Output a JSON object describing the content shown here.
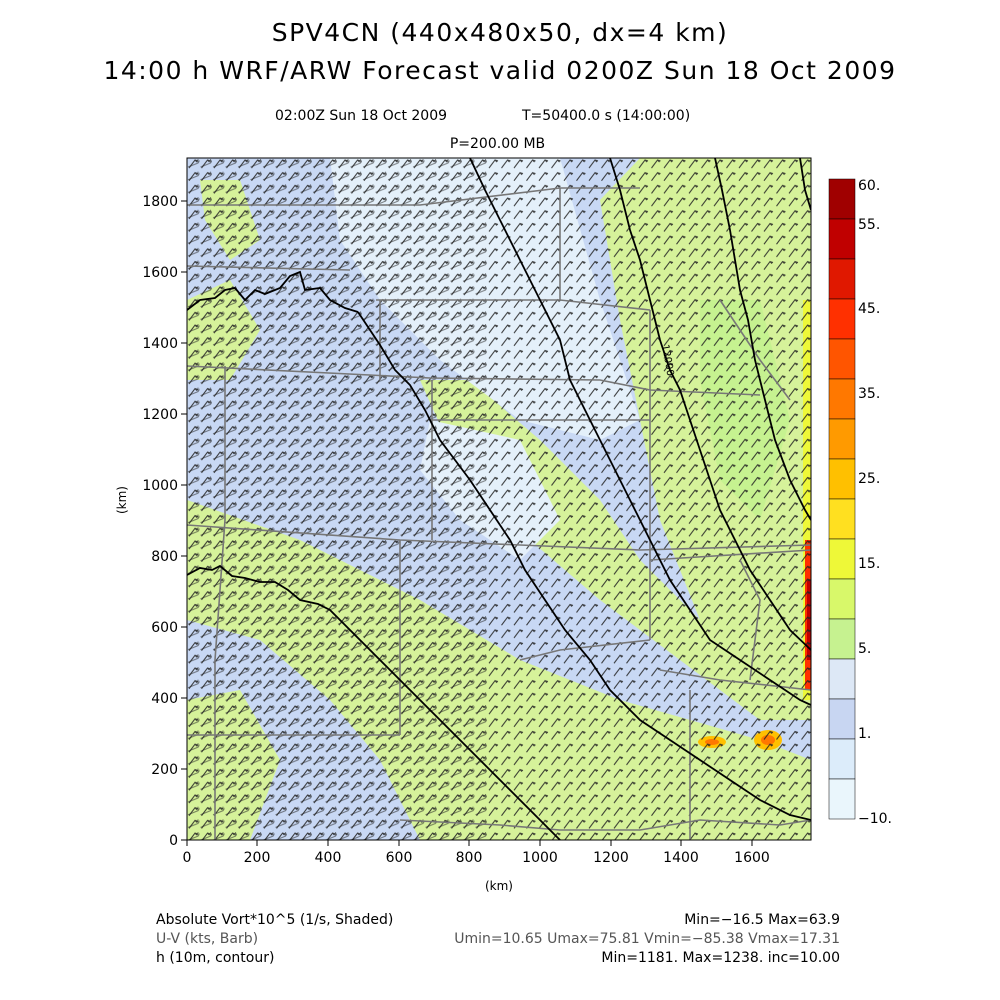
{
  "header": {
    "title_line1": "SPV4CN (440x480x50, dx=4 km)",
    "title_line2": "14:00 h WRF/ARW Forecast valid 0200Z Sun 18 Oct 2009",
    "valid_time": "02:00Z Sun 18 Oct 2009",
    "time_stamp": "T=50400.0 s (14:00:00)",
    "pressure_level": "P=200.00 MB"
  },
  "axes": {
    "x_label": "(km)",
    "y_label": "(km)",
    "x_ticks": [
      "0",
      "200",
      "400",
      "600",
      "800",
      "1000",
      "1200",
      "1400",
      "1600"
    ],
    "y_ticks": [
      "0",
      "200",
      "400",
      "600",
      "800",
      "1000",
      "1200",
      "1400",
      "1600",
      "1800"
    ]
  },
  "contour_label": "12000",
  "colorbar": {
    "labels": [
      "60.",
      "55.",
      "45.",
      "35.",
      "25.",
      "15.",
      "5.",
      "1.",
      "−10."
    ],
    "colors": [
      "#a00000",
      "#c00000",
      "#e01800",
      "#ff3000",
      "#ff5500",
      "#ff7800",
      "#ff9a00",
      "#ffc000",
      "#ffe020",
      "#eef838",
      "#d8f86a",
      "#c6f290",
      "#dde8f6",
      "#c8d6f2",
      "#dcecfa",
      "#eaf6fc"
    ]
  },
  "footer": {
    "left": [
      "Absolute Vort*10^5 (1/s, Shaded)",
      "U-V (kts, Barb)",
      "h (10m, contour)"
    ],
    "right": [
      "Min=−16.5 Max=63.9",
      "Umin=10.65 Umax=75.81 Vmin=−85.38 Vmax=17.31",
      "Min=1181. Max=1238. inc=10.00"
    ]
  }
}
